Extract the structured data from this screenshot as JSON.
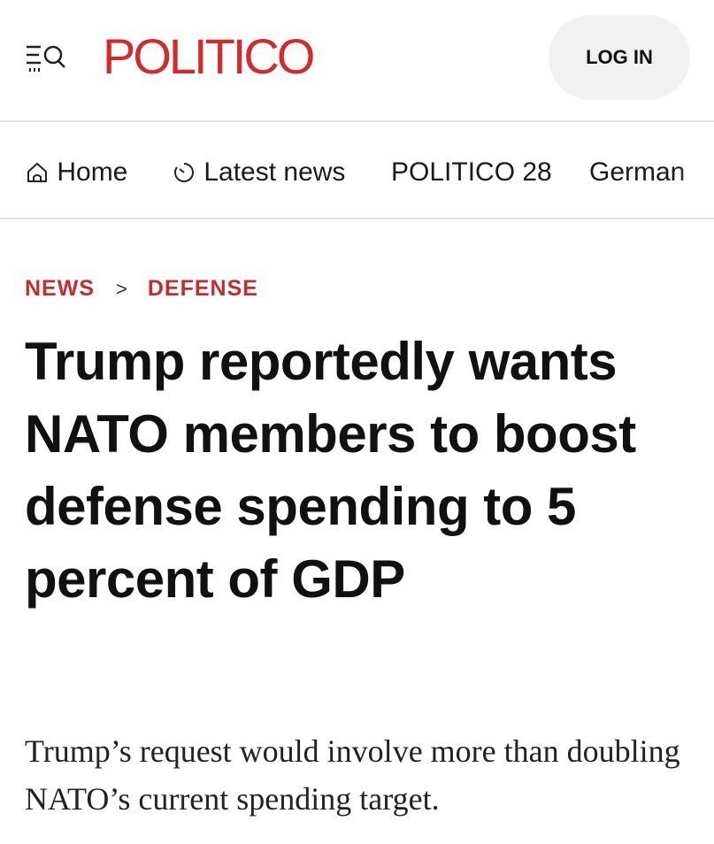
{
  "header": {
    "logo_text": "POLITICO",
    "login_label": "LOG IN",
    "menu_icon": "menu-search-icon"
  },
  "nav": {
    "items": [
      {
        "label": "Home",
        "icon": "home-icon"
      },
      {
        "label": "Latest news",
        "icon": "clock-icon"
      },
      {
        "label": "POLITICO 28"
      },
      {
        "label": "German"
      }
    ]
  },
  "breadcrumb": {
    "section": "NEWS",
    "separator": ">",
    "subsection": "DEFENSE"
  },
  "article": {
    "headline": "Trump reportedly wants NATO members to boost defense spending to 5 percent of GDP",
    "dek": "Trump’s request would involve more than doubling NATO’s current spending target."
  },
  "colors": {
    "brand": "#d42a2a",
    "breadcrumb": "#c72c2c",
    "text": "#111111"
  }
}
